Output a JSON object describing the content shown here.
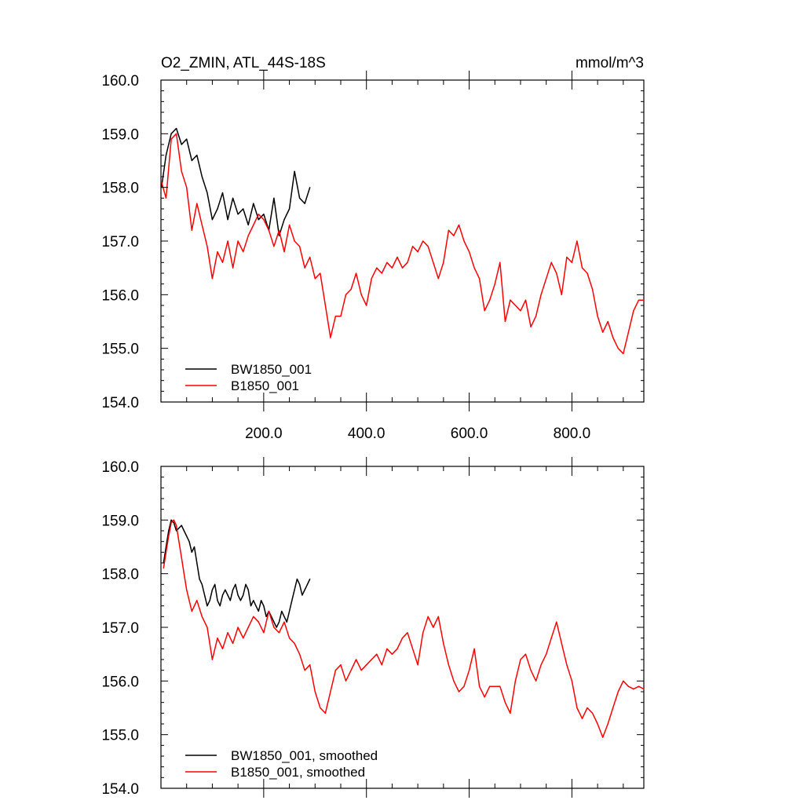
{
  "chart_data": [
    {
      "type": "line",
      "title": "O2_ZMIN, ATL_44S-18S",
      "units": "mmol/m^3",
      "xlim": [
        0,
        940
      ],
      "ylim": [
        154.0,
        160.0
      ],
      "x_ticks": [
        200,
        400,
        600,
        800
      ],
      "x_tick_labels": [
        "200.0",
        "400.0",
        "600.0",
        "800.0"
      ],
      "y_ticks": [
        154,
        155,
        156,
        157,
        158,
        159,
        160
      ],
      "y_tick_labels": [
        "154.0",
        "155.0",
        "156.0",
        "157.0",
        "158.0",
        "159.0",
        "160.0"
      ],
      "legend_position": "bottom-left",
      "series": [
        {
          "name": "BW1850_001",
          "color": "#000000",
          "x": [
            1,
            10,
            20,
            30,
            40,
            50,
            60,
            70,
            80,
            90,
            100,
            110,
            120,
            130,
            140,
            150,
            160,
            170,
            180,
            190,
            200,
            210,
            220,
            230,
            240,
            250,
            260,
            270,
            280,
            290
          ],
          "y": [
            158.0,
            158.6,
            159.0,
            159.1,
            158.8,
            158.9,
            158.5,
            158.6,
            158.2,
            157.9,
            157.4,
            157.6,
            157.9,
            157.4,
            157.8,
            157.5,
            157.6,
            157.3,
            157.7,
            157.4,
            157.5,
            157.2,
            157.8,
            157.1,
            157.4,
            157.6,
            158.3,
            157.8,
            157.7,
            158.0
          ]
        },
        {
          "name": "B1850_001",
          "color": "#ff0000",
          "x": [
            1,
            10,
            20,
            30,
            40,
            50,
            60,
            70,
            80,
            90,
            100,
            110,
            120,
            130,
            140,
            150,
            160,
            170,
            180,
            190,
            200,
            210,
            220,
            230,
            240,
            250,
            260,
            270,
            280,
            290,
            300,
            310,
            320,
            330,
            340,
            350,
            360,
            370,
            380,
            390,
            400,
            410,
            420,
            430,
            440,
            450,
            460,
            470,
            480,
            490,
            500,
            510,
            520,
            530,
            540,
            550,
            560,
            570,
            580,
            590,
            600,
            610,
            620,
            630,
            640,
            650,
            660,
            670,
            680,
            690,
            700,
            710,
            720,
            730,
            740,
            750,
            760,
            770,
            780,
            790,
            800,
            810,
            820,
            830,
            840,
            850,
            860,
            870,
            880,
            890,
            900,
            910,
            920,
            930,
            940
          ],
          "y": [
            158.1,
            157.8,
            158.9,
            159.0,
            158.3,
            158.0,
            157.2,
            157.7,
            157.3,
            156.9,
            156.3,
            156.8,
            156.6,
            157.0,
            156.5,
            157.0,
            156.8,
            157.1,
            157.3,
            157.5,
            157.4,
            157.2,
            156.9,
            157.2,
            156.8,
            157.3,
            157.0,
            156.9,
            156.5,
            156.7,
            156.3,
            156.4,
            155.8,
            155.2,
            155.6,
            155.6,
            156.0,
            156.1,
            156.4,
            156.0,
            155.8,
            156.3,
            156.5,
            156.4,
            156.6,
            156.5,
            156.7,
            156.5,
            156.6,
            156.9,
            156.8,
            157.0,
            156.9,
            156.6,
            156.3,
            156.6,
            157.2,
            157.1,
            157.3,
            157.0,
            156.8,
            156.5,
            156.3,
            155.7,
            155.9,
            156.2,
            156.6,
            155.5,
            155.9,
            155.8,
            155.7,
            155.9,
            155.4,
            155.6,
            156.0,
            156.3,
            156.6,
            156.4,
            156.0,
            156.7,
            156.6,
            157.0,
            156.5,
            156.4,
            156.1,
            155.6,
            155.3,
            155.5,
            155.2,
            155.0,
            154.9,
            155.3,
            155.7,
            155.9,
            155.9
          ]
        }
      ]
    },
    {
      "type": "line",
      "xlim": [
        0,
        940
      ],
      "ylim": [
        154.0,
        160.0
      ],
      "x_ticks": [
        200,
        400,
        600,
        800
      ],
      "y_ticks": [
        154,
        155,
        156,
        157,
        158,
        159,
        160
      ],
      "y_tick_labels": [
        "154.0",
        "155.0",
        "156.0",
        "157.0",
        "158.0",
        "159.0",
        "160.0"
      ],
      "legend_position": "bottom-left",
      "series": [
        {
          "name": "BW1850_001, smoothed",
          "color": "#000000",
          "x": [
            5,
            10,
            15,
            20,
            25,
            30,
            35,
            40,
            45,
            50,
            55,
            60,
            65,
            70,
            75,
            80,
            85,
            90,
            95,
            100,
            105,
            110,
            115,
            120,
            125,
            130,
            135,
            140,
            145,
            150,
            155,
            160,
            165,
            170,
            175,
            180,
            185,
            190,
            195,
            200,
            205,
            210,
            215,
            220,
            225,
            230,
            235,
            240,
            245,
            250,
            255,
            260,
            265,
            270,
            275,
            280,
            285,
            290
          ],
          "y": [
            158.2,
            158.5,
            158.8,
            159.0,
            158.95,
            158.8,
            158.85,
            158.9,
            158.8,
            158.7,
            158.6,
            158.4,
            158.5,
            158.2,
            157.9,
            157.8,
            157.6,
            157.4,
            157.5,
            157.7,
            157.8,
            157.5,
            157.4,
            157.6,
            157.7,
            157.6,
            157.5,
            157.7,
            157.8,
            157.6,
            157.5,
            157.6,
            157.8,
            157.7,
            157.4,
            157.5,
            157.4,
            157.3,
            157.5,
            157.4,
            157.2,
            157.3,
            157.2,
            157.1,
            157.0,
            157.1,
            157.3,
            157.2,
            157.1,
            157.3,
            157.5,
            157.7,
            157.9,
            157.8,
            157.6,
            157.7,
            157.8,
            157.9
          ]
        },
        {
          "name": "B1850_001, smoothed",
          "color": "#ff0000",
          "x": [
            5,
            10,
            15,
            20,
            25,
            30,
            35,
            40,
            45,
            50,
            60,
            70,
            80,
            90,
            100,
            110,
            120,
            130,
            140,
            150,
            160,
            170,
            180,
            190,
            200,
            210,
            220,
            230,
            240,
            250,
            260,
            270,
            280,
            290,
            300,
            310,
            320,
            330,
            340,
            350,
            360,
            370,
            380,
            390,
            400,
            410,
            420,
            430,
            440,
            450,
            460,
            470,
            480,
            490,
            500,
            510,
            520,
            530,
            540,
            550,
            560,
            570,
            580,
            590,
            600,
            610,
            620,
            630,
            640,
            650,
            660,
            670,
            680,
            690,
            700,
            710,
            720,
            730,
            740,
            750,
            760,
            770,
            780,
            790,
            800,
            810,
            820,
            830,
            840,
            850,
            860,
            870,
            880,
            890,
            900,
            910,
            920,
            930,
            940
          ],
          "y": [
            158.1,
            158.4,
            158.7,
            158.95,
            159.0,
            158.9,
            158.6,
            158.3,
            158.0,
            157.7,
            157.3,
            157.5,
            157.2,
            157.0,
            156.4,
            156.8,
            156.6,
            156.9,
            156.7,
            157.0,
            156.8,
            157.0,
            157.2,
            157.1,
            156.9,
            157.3,
            157.0,
            156.9,
            157.1,
            156.8,
            156.7,
            156.5,
            156.2,
            156.3,
            155.8,
            155.5,
            155.4,
            155.8,
            156.2,
            156.3,
            156.0,
            156.2,
            156.4,
            156.2,
            156.3,
            156.4,
            156.5,
            156.3,
            156.6,
            156.5,
            156.6,
            156.8,
            156.9,
            156.6,
            156.3,
            156.9,
            157.2,
            157.0,
            157.2,
            156.7,
            156.3,
            156.0,
            155.8,
            155.9,
            156.2,
            156.6,
            155.9,
            155.7,
            155.9,
            155.9,
            155.9,
            155.6,
            155.4,
            156.0,
            156.4,
            156.5,
            156.2,
            156.0,
            156.3,
            156.5,
            156.8,
            157.1,
            156.7,
            156.3,
            156.0,
            155.5,
            155.3,
            155.5,
            155.4,
            155.2,
            154.95,
            155.2,
            155.5,
            155.8,
            156.0,
            155.9,
            155.85,
            155.9,
            155.85
          ]
        }
      ]
    }
  ]
}
